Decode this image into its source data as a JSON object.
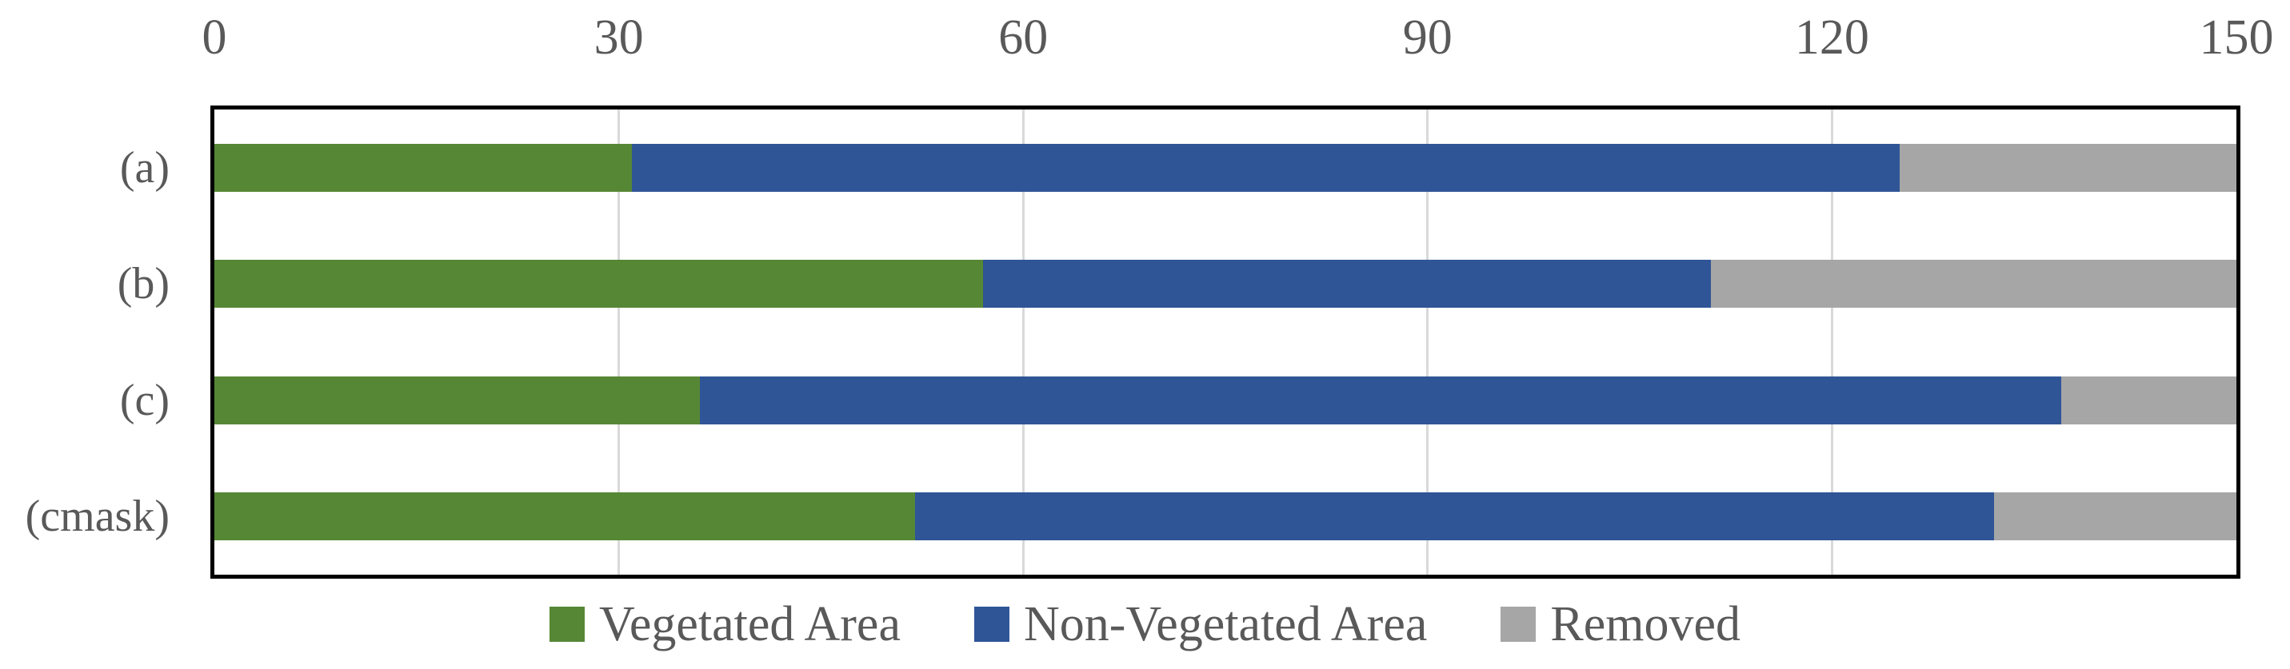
{
  "figure": {
    "background_color": "#FFFFFF",
    "frame_color": "#000000",
    "text_color": "#595959",
    "gridline_color": "#D9D9D9"
  },
  "chart_data": {
    "type": "bar",
    "orientation": "horizontal",
    "stacked": true,
    "title": "",
    "xlabel": "",
    "ylabel": "",
    "categories": [
      "(a)",
      "(b)",
      "(c)",
      "(cmask)"
    ],
    "series": [
      {
        "key": "vegetated-area",
        "name": "Vegetated Area",
        "color": "#568735",
        "values": [
          31,
          57,
          36,
          52
        ]
      },
      {
        "key": "non-vegetated-area",
        "name": "Non-Vegetated Area",
        "color": "#2F5597",
        "values": [
          94,
          54,
          101,
          80
        ]
      },
      {
        "key": "removed",
        "name": "Removed",
        "color": "#A6A6A6",
        "values": [
          25,
          39,
          13,
          18
        ]
      }
    ],
    "totals": [
      150,
      150,
      150,
      150
    ],
    "x_axis": {
      "position": "top",
      "min": 0,
      "max": 150,
      "tick_interval": 30,
      "tick_values": [
        0,
        30,
        60,
        90,
        120,
        150
      ],
      "tick_labels": [
        "0",
        "30",
        "60",
        "90",
        "120",
        "150"
      ]
    },
    "grid": true,
    "legend": {
      "position": "bottom-center",
      "entries": [
        "Vegetated Area",
        "Non-Vegetated Area",
        "Removed"
      ]
    }
  }
}
